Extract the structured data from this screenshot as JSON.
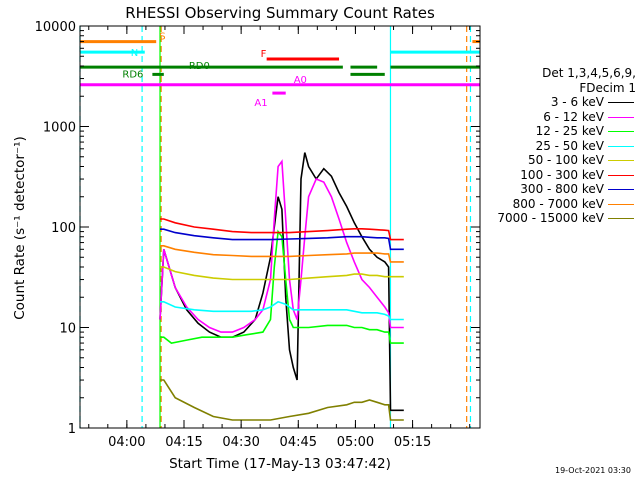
{
  "chart_data": {
    "type": "line",
    "title": "RHESSI Observing Summary Count Rates",
    "xlabel": "Start Time (17-May-13 03:47:42)",
    "ylabel": "Count Rate (s⁻¹ detector⁻¹)",
    "xlim_minutes_after_start": [
      0,
      105
    ],
    "xticks": [
      {
        "label": "04:00",
        "minutes": 12.3
      },
      {
        "label": "04:15",
        "minutes": 27.3
      },
      {
        "label": "04:30",
        "minutes": 42.3
      },
      {
        "label": "04:45",
        "minutes": 57.3
      },
      {
        "label": "05:00",
        "minutes": 72.3
      },
      {
        "label": "05:15",
        "minutes": 87.3
      }
    ],
    "yscale": "log",
    "ylim": [
      1,
      10000
    ],
    "yticks": [
      {
        "label": "1",
        "value": 1
      },
      {
        "label": "10",
        "value": 10
      },
      {
        "label": "100",
        "value": 100
      },
      {
        "label": "1000",
        "value": 1000
      },
      {
        "label": "10000",
        "value": 10000
      }
    ],
    "legend_title": [
      "Det 1,3,4,5,6,9,",
      "FDecim 1"
    ],
    "legend_position": "right",
    "series": [
      {
        "name": "3 - 6 keV",
        "color": "#000000",
        "x": [
          21,
          22,
          25,
          28,
          31,
          34,
          37,
          40,
          43,
          46,
          48,
          50,
          52,
          53,
          54,
          55,
          56,
          57,
          58,
          59,
          60,
          62,
          64,
          66,
          68,
          70,
          72,
          74,
          76,
          78,
          80,
          81,
          81.5,
          84,
          85
        ],
        "y": [
          12,
          60,
          25,
          15,
          11,
          9,
          8,
          8,
          9,
          12,
          22,
          50,
          200,
          150,
          20,
          6,
          4,
          3,
          300,
          550,
          400,
          300,
          380,
          320,
          220,
          160,
          110,
          80,
          60,
          50,
          45,
          40,
          1.5,
          1.5,
          1.5
        ]
      },
      {
        "name": "6 - 12 keV",
        "color": "#ff00ff",
        "x": [
          21,
          22,
          25,
          28,
          31,
          34,
          37,
          40,
          43,
          46,
          48,
          50,
          51,
          52,
          53,
          54,
          55,
          56,
          57,
          58,
          59,
          60,
          62,
          64,
          66,
          68,
          70,
          72,
          74,
          76,
          78,
          80,
          81,
          81.5,
          84,
          85
        ],
        "y": [
          12,
          60,
          25,
          16,
          12,
          10,
          9,
          9,
          10,
          12,
          15,
          30,
          120,
          400,
          450,
          120,
          30,
          15,
          12,
          30,
          80,
          200,
          300,
          280,
          200,
          120,
          70,
          45,
          30,
          25,
          20,
          16,
          14,
          10,
          10,
          10
        ]
      },
      {
        "name": "12 - 25 keV",
        "color": "#00ff00",
        "x": [
          21,
          22,
          24,
          28,
          32,
          36,
          40,
          44,
          48,
          50,
          51,
          52,
          53,
          54,
          55,
          56,
          60,
          65,
          70,
          72,
          74,
          76,
          78,
          80,
          81,
          81.5,
          84,
          85
        ],
        "y": [
          8,
          8,
          7,
          7.5,
          8,
          8,
          8,
          8.5,
          9,
          12,
          40,
          90,
          80,
          30,
          12,
          10,
          10,
          10.5,
          10.5,
          10,
          10,
          9.5,
          9.5,
          9,
          9,
          7,
          7,
          7
        ]
      },
      {
        "name": "25 - 50 keV",
        "color": "#00ffff",
        "x": [
          21,
          22,
          25,
          30,
          35,
          40,
          45,
          48,
          50,
          52,
          54,
          56,
          60,
          65,
          70,
          72,
          74,
          76,
          78,
          80,
          81,
          81.5,
          84,
          85
        ],
        "y": [
          18,
          18,
          16,
          15,
          14.5,
          14.5,
          14.5,
          15,
          16,
          18,
          17,
          15,
          15,
          15,
          15,
          14.5,
          14,
          14,
          14,
          13.5,
          13,
          12,
          12,
          12
        ]
      },
      {
        "name": "50 - 100 keV",
        "color": "#cccc00",
        "x": [
          21,
          22,
          25,
          30,
          35,
          40,
          45,
          50,
          55,
          60,
          65,
          70,
          72,
          74,
          76,
          78,
          80,
          81,
          81.5,
          84,
          85
        ],
        "y": [
          40,
          40,
          36,
          33,
          31,
          30,
          30,
          30,
          30,
          31,
          32,
          33,
          34,
          34,
          33,
          33,
          32,
          32,
          32,
          32,
          32
        ]
      },
      {
        "name": "100 - 300 keV",
        "color": "#ff0000",
        "x": [
          21,
          22,
          25,
          30,
          35,
          40,
          45,
          50,
          55,
          60,
          65,
          70,
          72,
          74,
          76,
          78,
          80,
          81,
          81.5,
          84,
          85
        ],
        "y": [
          120,
          120,
          110,
          100,
          95,
          90,
          88,
          88,
          88,
          90,
          92,
          95,
          96,
          96,
          95,
          94,
          93,
          92,
          75,
          75,
          75
        ]
      },
      {
        "name": "300 - 800 keV",
        "color": "#0000cc",
        "x": [
          21,
          22,
          25,
          30,
          35,
          40,
          45,
          50,
          55,
          60,
          65,
          70,
          72,
          74,
          76,
          78,
          80,
          81,
          81.5,
          84,
          85
        ],
        "y": [
          95,
          95,
          88,
          82,
          78,
          75,
          75,
          75,
          76,
          77,
          78,
          80,
          80,
          80,
          79,
          78,
          78,
          77,
          60,
          60,
          60
        ]
      },
      {
        "name": "800 - 7000 keV",
        "color": "#ff8000",
        "x": [
          21,
          22,
          25,
          30,
          35,
          40,
          45,
          50,
          55,
          60,
          65,
          70,
          72,
          74,
          76,
          78,
          80,
          81,
          81.5,
          84,
          85
        ],
        "y": [
          65,
          65,
          60,
          56,
          53,
          52,
          51,
          51,
          51,
          52,
          53,
          54,
          55,
          55,
          55,
          55,
          54,
          54,
          45,
          45,
          45
        ]
      },
      {
        "name": "7000 - 15000 keV",
        "color": "#808000",
        "x": [
          21,
          22,
          25,
          30,
          35,
          40,
          45,
          50,
          55,
          60,
          65,
          70,
          72,
          74,
          76,
          78,
          80,
          81,
          81.5,
          84,
          85
        ],
        "y": [
          3,
          3,
          2,
          1.6,
          1.3,
          1.2,
          1.2,
          1.2,
          1.3,
          1.4,
          1.6,
          1.7,
          1.8,
          1.8,
          1.9,
          1.8,
          1.7,
          1.7,
          1.2,
          1.2,
          1.2
        ]
      }
    ],
    "flag_bars": [
      {
        "label": "S",
        "color": "#ff8000",
        "value": 7000,
        "segments": [
          [
            0,
            20
          ],
          [
            103,
            105
          ]
        ]
      },
      {
        "label": "N",
        "color": "#00ffff",
        "value": 5500,
        "segments": [
          [
            0,
            17
          ],
          [
            81.5,
            105
          ]
        ]
      },
      {
        "label": "F",
        "color": "#ff0000",
        "value": 4700,
        "segments": [
          [
            49,
            68
          ]
        ]
      },
      {
        "label": "RD0",
        "color": "#008000",
        "value": 3900,
        "segments": [
          [
            0,
            69
          ],
          [
            71,
            78
          ],
          [
            81.5,
            105
          ]
        ]
      },
      {
        "label": "RD6",
        "color": "#008000",
        "value": 3300,
        "segments": [
          [
            19,
            22
          ],
          [
            71,
            80
          ]
        ]
      },
      {
        "label": "A0",
        "color": "#ff00ff",
        "value": 2600,
        "segments": [
          [
            0,
            105
          ]
        ]
      },
      {
        "label": "A1",
        "color": "#ff00ff",
        "value": 2150,
        "segments": [
          [
            50.5,
            54
          ]
        ]
      }
    ],
    "flag_labels_order": [
      "S",
      "N",
      "F",
      "RD0",
      "RD6",
      "A0",
      "A1"
    ],
    "vertical_markers": [
      {
        "color": "#00ffff",
        "style": "dashed",
        "minutes": 0
      },
      {
        "color": "#00ffff",
        "style": "dashed",
        "minutes": 16.3
      },
      {
        "color": "#ff8000",
        "style": "dashed",
        "minutes": 21.3
      },
      {
        "color": "#00ff00",
        "style": "solid",
        "minutes": 21.0
      },
      {
        "color": "#00ffff",
        "style": "solid",
        "minutes": 81.5
      },
      {
        "color": "#ff8000",
        "style": "dashed",
        "minutes": 101.5
      },
      {
        "color": "#00ffff",
        "style": "dashed",
        "minutes": 102.5
      }
    ]
  },
  "footer_stamp": "19-Oct-2021 03:30"
}
